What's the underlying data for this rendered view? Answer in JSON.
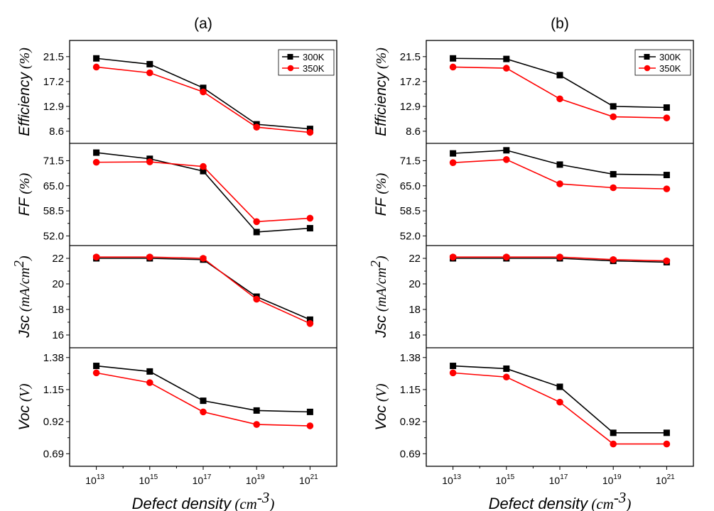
{
  "chart_data": [
    {
      "panel_label": "(a)",
      "type": "line",
      "x_label": "Defect density",
      "x_label_unit": "(cm",
      "x_label_unit_exp": "-3",
      "x_label_unit_close": ")",
      "x": [
        13,
        15,
        17,
        19,
        21
      ],
      "x_ticks": [
        {
          "base": "10",
          "exp": "13"
        },
        {
          "base": "10",
          "exp": "15"
        },
        {
          "base": "10",
          "exp": "17"
        },
        {
          "base": "10",
          "exp": "19"
        },
        {
          "base": "10",
          "exp": "21"
        }
      ],
      "legend": {
        "position": "top-right",
        "entries": [
          "300K",
          "350K"
        ]
      },
      "subplots": [
        {
          "ylabel": "Efficiency",
          "ylabel_unit": "(%)",
          "ylabel_unit_exp": "",
          "ylim": [
            6.5,
            24.3
          ],
          "ticks": [
            "8.6",
            "12.9",
            "17.2",
            "21.5"
          ],
          "series": [
            {
              "name": "300K",
              "values": [
                21.2,
                20.2,
                16.1,
                9.8,
                9.0
              ]
            },
            {
              "name": "350K",
              "values": [
                19.7,
                18.7,
                15.4,
                9.3,
                8.4
              ]
            }
          ]
        },
        {
          "ylabel": "FF",
          "ylabel_unit": "(%)",
          "ylabel_unit_exp": "",
          "ylim": [
            49.5,
            76
          ],
          "ticks": [
            "52.0",
            "58.5",
            "65.0",
            "71.5"
          ],
          "series": [
            {
              "name": "300K",
              "values": [
                73.6,
                72.0,
                68.8,
                53.0,
                54.0
              ]
            },
            {
              "name": "350K",
              "values": [
                71.1,
                71.2,
                70.0,
                55.7,
                56.6
              ]
            }
          ]
        },
        {
          "ylabel": "Jsc",
          "ylabel_unit": "(mA/cm",
          "ylabel_unit_exp": "2",
          "ylabel_unit_close": ")",
          "ylim": [
            15.0,
            23.0
          ],
          "ticks": [
            "16",
            "18",
            "20",
            "22"
          ],
          "series": [
            {
              "name": "300K",
              "values": [
                22.0,
                22.0,
                21.9,
                19.0,
                17.2
              ]
            },
            {
              "name": "350K",
              "values": [
                22.1,
                22.1,
                22.0,
                18.8,
                16.9
              ]
            }
          ]
        },
        {
          "ylabel": "Voc",
          "ylabel_unit": "(V)",
          "ylabel_unit_exp": "",
          "ylim": [
            0.6,
            1.45
          ],
          "ticks": [
            "0.69",
            "0.92",
            "1.15",
            "1.38"
          ],
          "series": [
            {
              "name": "300K",
              "values": [
                1.32,
                1.28,
                1.07,
                1.0,
                0.99
              ]
            },
            {
              "name": "350K",
              "values": [
                1.27,
                1.2,
                0.99,
                0.9,
                0.89
              ]
            }
          ]
        }
      ]
    },
    {
      "panel_label": "(b)",
      "type": "line",
      "x_label": "Defect density",
      "x_label_unit": "(cm",
      "x_label_unit_exp": "-3",
      "x_label_unit_close": ")",
      "x": [
        13,
        15,
        17,
        19,
        21
      ],
      "x_ticks": [
        {
          "base": "10",
          "exp": "13"
        },
        {
          "base": "10",
          "exp": "15"
        },
        {
          "base": "10",
          "exp": "17"
        },
        {
          "base": "10",
          "exp": "19"
        },
        {
          "base": "10",
          "exp": "21"
        }
      ],
      "legend": {
        "position": "top-right",
        "entries": [
          "300K",
          "350K"
        ]
      },
      "subplots": [
        {
          "ylabel": "Efficiency",
          "ylabel_unit": "(%)",
          "ylabel_unit_exp": "",
          "ylim": [
            6.5,
            24.3
          ],
          "ticks": [
            "8.6",
            "12.9",
            "17.2",
            "21.5"
          ],
          "series": [
            {
              "name": "300K",
              "values": [
                21.2,
                21.1,
                18.3,
                12.9,
                12.7
              ]
            },
            {
              "name": "350K",
              "values": [
                19.7,
                19.5,
                14.2,
                11.1,
                10.9
              ]
            }
          ]
        },
        {
          "ylabel": "FF",
          "ylabel_unit": "(%)",
          "ylabel_unit_exp": "",
          "ylim": [
            49.5,
            76
          ],
          "ticks": [
            "52.0",
            "58.5",
            "65.0",
            "71.5"
          ],
          "series": [
            {
              "name": "300K",
              "values": [
                73.4,
                74.2,
                70.5,
                68.0,
                67.8
              ]
            },
            {
              "name": "350K",
              "values": [
                71.0,
                71.8,
                65.5,
                64.5,
                64.2
              ]
            }
          ]
        },
        {
          "ylabel": "Jsc",
          "ylabel_unit": "(mA/cm",
          "ylabel_unit_exp": "2",
          "ylabel_unit_close": ")",
          "ylim": [
            15.0,
            23.0
          ],
          "ticks": [
            "16",
            "18",
            "20",
            "22"
          ],
          "series": [
            {
              "name": "300K",
              "values": [
                22.0,
                22.0,
                22.0,
                21.8,
                21.7
              ]
            },
            {
              "name": "350K",
              "values": [
                22.1,
                22.1,
                22.1,
                21.9,
                21.8
              ]
            }
          ]
        },
        {
          "ylabel": "Voc",
          "ylabel_unit": "(V)",
          "ylabel_unit_exp": "",
          "ylim": [
            0.6,
            1.45
          ],
          "ticks": [
            "0.69",
            "0.92",
            "1.15",
            "1.38"
          ],
          "series": [
            {
              "name": "300K",
              "values": [
                1.32,
                1.3,
                1.17,
                0.84,
                0.84
              ]
            },
            {
              "name": "350K",
              "values": [
                1.27,
                1.24,
                1.06,
                0.76,
                0.76
              ]
            }
          ]
        }
      ]
    }
  ],
  "colors": {
    "series_300K": "#000000",
    "series_350K": "#ff0000",
    "axis": "#000000"
  }
}
